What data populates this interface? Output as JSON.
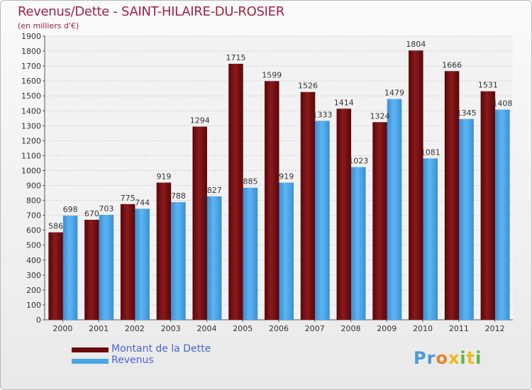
{
  "title": "Revenus/Dette - SAINT-HILAIRE-DU-ROSIER",
  "subtitle": "(en milliers d'€)",
  "legend": {
    "dette_label": "Montant de la Dette",
    "revenus_label": "Revenus"
  },
  "logo": {
    "text": "Proxiti"
  },
  "colors": {
    "dette": "#6b0b0d",
    "revenus": "#4aa6e8",
    "title": "#9e2241",
    "legend_text": "#4a64d8"
  },
  "chart_data": {
    "type": "bar",
    "title": "Revenus/Dette - SAINT-HILAIRE-DU-ROSIER",
    "ylabel": "(en milliers d'€)",
    "xlabel": "",
    "categories": [
      "2000",
      "2001",
      "2002",
      "2003",
      "2004",
      "2005",
      "2006",
      "2007",
      "2008",
      "2009",
      "2010",
      "2011",
      "2012"
    ],
    "series": [
      {
        "name": "Montant de la Dette",
        "values": [
          586,
          670,
          775,
          919,
          1294,
          1715,
          1599,
          1526,
          1414,
          1324,
          1804,
          1666,
          1531
        ]
      },
      {
        "name": "Revenus",
        "values": [
          698,
          703,
          744,
          788,
          827,
          885,
          919,
          1333,
          1023,
          1479,
          1081,
          1345,
          1408
        ]
      }
    ],
    "ylim": [
      0,
      1900
    ],
    "ystep": 100,
    "grid": true,
    "legend_position": "bottom-left"
  }
}
